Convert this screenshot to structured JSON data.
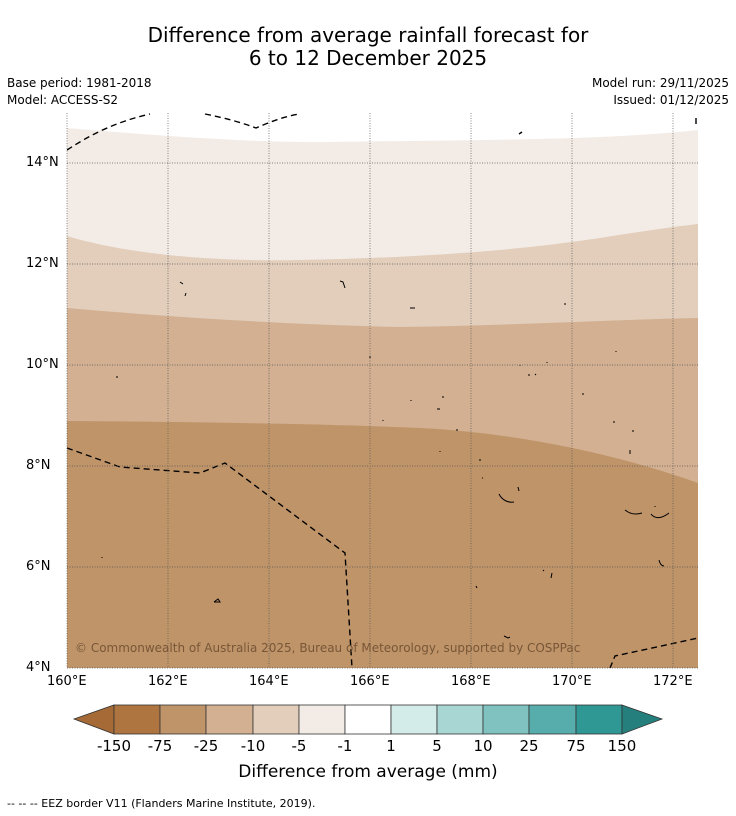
{
  "header": {
    "title_line1": "Difference from average rainfall forecast for",
    "title_line2": "6 to 12 December 2025",
    "base_period": "Base period: 1981-2018",
    "model": "Model: ACCESS-S2",
    "model_run": "Model run: 29/11/2025",
    "issued": "Issued: 01/12/2025"
  },
  "map": {
    "lon_ticks": [
      "160°E",
      "162°E",
      "164°E",
      "166°E",
      "168°E",
      "170°E",
      "172°E"
    ],
    "lat_ticks": [
      "14°N",
      "12°N",
      "10°N",
      "8°N",
      "6°N",
      "4°N"
    ],
    "copyright": "© Commonwealth of Australia 2025, Bureau of Meteorology, supported by COSPPac",
    "lon_range": [
      160,
      172.5
    ],
    "lat_range": [
      4,
      14.9
    ]
  },
  "colorbar": {
    "labels": [
      "-150",
      "-75",
      "-25",
      "-10",
      "-5",
      "-1",
      "1",
      "5",
      "10",
      "25",
      "75",
      "150"
    ],
    "colors": [
      "#a56a35",
      "#ae7540",
      "#bf9469",
      "#d2b091",
      "#e2cebb",
      "#f3ece6",
      "#ffffff",
      "#d3ebe9",
      "#a8d6d3",
      "#80c2c0",
      "#57adab",
      "#2f9895",
      "#25807d"
    ],
    "title": "Difference from average (mm)"
  },
  "footnote": "--  --  -- EEZ border V11 (Flanders Marine Institute, 2019).",
  "icons": [
    "colorbar-left-arrow-icon",
    "colorbar-right-arrow-icon"
  ]
}
